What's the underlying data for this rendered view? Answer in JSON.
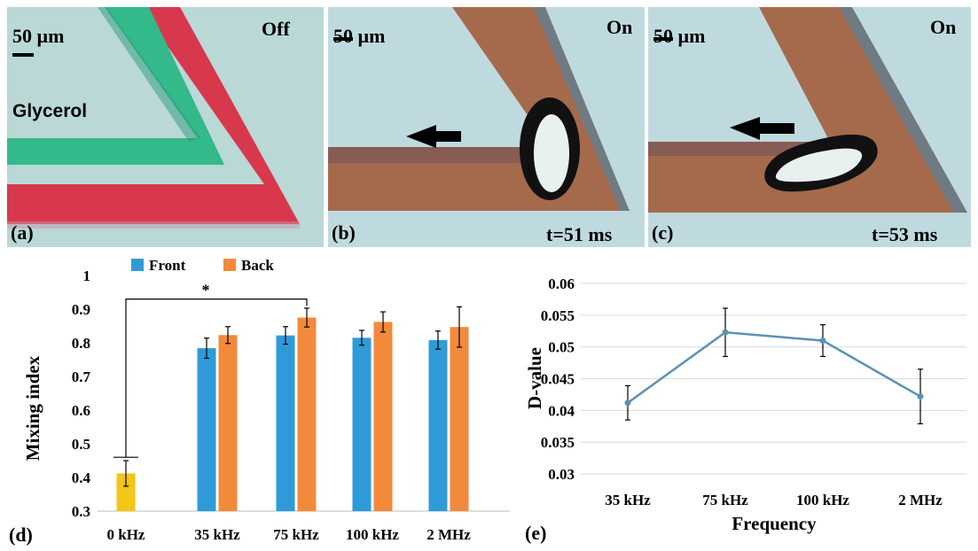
{
  "micrographs": {
    "a": {
      "label": "(a)",
      "state": "Off",
      "scale": "50 µm",
      "fluid": "Glycerol"
    },
    "b": {
      "label": "(b)",
      "state": "On",
      "scale": "50 µm",
      "time": "t=51 ms"
    },
    "c": {
      "label": "(c)",
      "state": "On",
      "scale": "50 µm",
      "time": "t=53 ms"
    }
  },
  "colors": {
    "front": "#2e9bd8",
    "back": "#f28a3c",
    "zero": "#f5c518",
    "line": "#5b92b3"
  },
  "chart_data": [
    {
      "type": "bar",
      "panel_label": "(d)",
      "ylabel": "Mixing index",
      "xlabel": "",
      "ylim": [
        0.3,
        1
      ],
      "yticks": [
        "0.3",
        "0.4",
        "0.5",
        "0.6",
        "0.7",
        "0.8",
        "0.9",
        "1"
      ],
      "categories": [
        "0 kHz",
        "35 kHz",
        "75 kHz",
        "100 kHz",
        "2 MHz"
      ],
      "legend": [
        "Front",
        "Back"
      ],
      "legend_position": "top",
      "baseline": {
        "name": "0 kHz",
        "value": 0.412,
        "error": 0.038
      },
      "series": [
        {
          "name": "Front",
          "values": [
            null,
            0.784,
            0.822,
            0.815,
            0.808
          ],
          "errors": [
            null,
            0.03,
            0.026,
            0.022,
            0.027
          ]
        },
        {
          "name": "Back",
          "values": [
            null,
            0.823,
            0.875,
            0.862,
            0.847
          ],
          "errors": [
            null,
            0.025,
            0.028,
            0.03,
            0.06
          ]
        }
      ],
      "annotation": "*"
    },
    {
      "type": "line",
      "panel_label": "(e)",
      "ylabel": "D-value",
      "xlabel": "Frequency",
      "ylim": [
        0.03,
        0.06
      ],
      "yticks": [
        "0.03",
        "0.035",
        "0.04",
        "0.045",
        "0.05",
        "0.055",
        "0.06"
      ],
      "categories": [
        "35 kHz",
        "75 kHz",
        "100 kHz",
        "2 MHz"
      ],
      "values": [
        0.0412,
        0.0523,
        0.051,
        0.0422
      ],
      "errors": [
        0.0027,
        0.0038,
        0.0025,
        0.0043
      ],
      "grid": true
    }
  ]
}
